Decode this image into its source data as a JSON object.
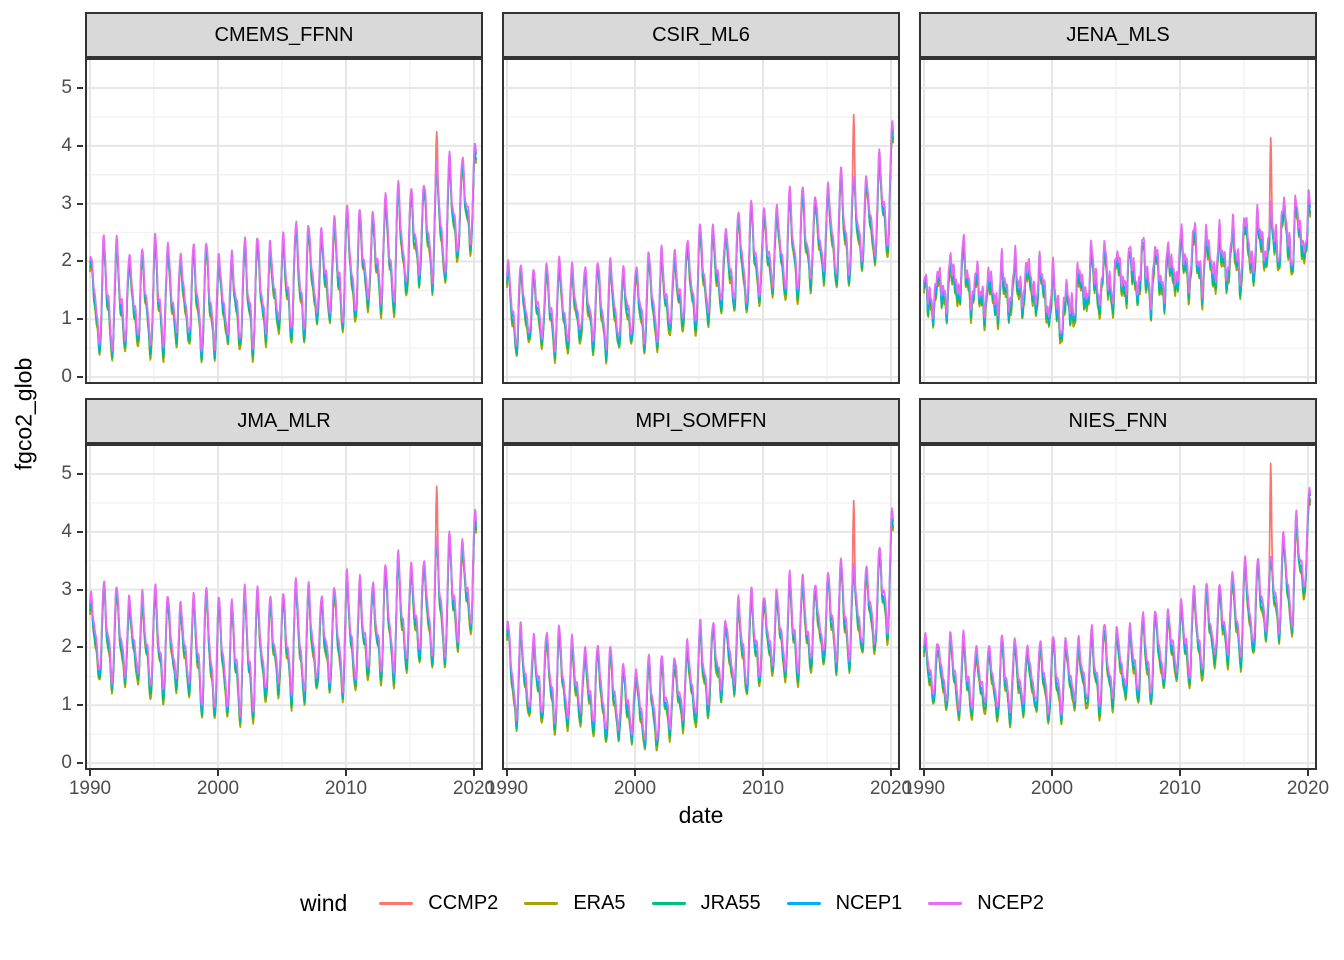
{
  "chart_data": {
    "type": "line",
    "xlabel": "date",
    "ylabel": "fgco2_glob",
    "legend_title": "wind",
    "x": {
      "min": 1990,
      "max": 2020.2,
      "ticks": [
        1990,
        2000,
        2010,
        2020
      ],
      "minor": [
        1995,
        2005,
        2015
      ]
    },
    "y": {
      "lim": [
        -0.12,
        5.52
      ],
      "ticks": [
        0,
        1,
        2,
        3,
        4,
        5
      ],
      "minor": [
        0.5,
        1.5,
        2.5,
        3.5,
        4.5,
        5.5
      ]
    },
    "grid": {
      "major_color": "#e6e6e6",
      "minor_color": "#f2f2f2",
      "panel_bg": "#ffffff",
      "border_color": "#333333",
      "strip_bg": "#d9d9d9"
    },
    "samples_per_year": 24,
    "spike_series": "CCMP2",
    "series": [
      {
        "name": "CCMP2",
        "color": "#F8766D",
        "offset": -0.06,
        "gain": 0.98
      },
      {
        "name": "ERA5",
        "color": "#A3A500",
        "offset": -0.1,
        "gain": 1.02
      },
      {
        "name": "JRA55",
        "color": "#00BF7D",
        "offset": -0.05,
        "gain": 1.0
      },
      {
        "name": "NCEP1",
        "color": "#00B0F6",
        "offset": 0.03,
        "gain": 1.0
      },
      {
        "name": "NCEP2",
        "color": "#E76BF3",
        "offset": 0.1,
        "gain": 1.0
      }
    ],
    "facets": [
      {
        "title": "CMEMS_FFNN",
        "noise": 0.1,
        "spike": {
          "t": 2017.09,
          "value": 4.25
        },
        "mean": [
          [
            1990,
            1.3
          ],
          [
            1992,
            1.32
          ],
          [
            1994,
            1.28
          ],
          [
            1996,
            1.35
          ],
          [
            1998,
            1.32
          ],
          [
            2000,
            1.25
          ],
          [
            2002,
            1.32
          ],
          [
            2004,
            1.45
          ],
          [
            2006,
            1.6
          ],
          [
            2008,
            1.7
          ],
          [
            2010,
            1.85
          ],
          [
            2012,
            1.95
          ],
          [
            2014,
            2.2
          ],
          [
            2016,
            2.45
          ],
          [
            2017,
            2.55
          ],
          [
            2018,
            2.7
          ],
          [
            2019,
            2.9
          ],
          [
            2020.2,
            3.1
          ]
        ],
        "amp": [
          [
            1990,
            0.95
          ],
          [
            2000,
            0.9
          ],
          [
            2010,
            0.95
          ],
          [
            2016,
            1.0
          ],
          [
            2020.2,
            1.0
          ]
        ]
      },
      {
        "title": "CSIR_ML6",
        "noise": 0.08,
        "spike": {
          "t": 2017.09,
          "value": 4.55
        },
        "mean": [
          [
            1990,
            1.15
          ],
          [
            1992,
            1.18
          ],
          [
            1994,
            1.15
          ],
          [
            1996,
            1.2
          ],
          [
            1998,
            1.15
          ],
          [
            2000,
            1.2
          ],
          [
            2002,
            1.3
          ],
          [
            2004,
            1.55
          ],
          [
            2006,
            1.75
          ],
          [
            2008,
            1.95
          ],
          [
            2010,
            2.1
          ],
          [
            2012,
            2.2
          ],
          [
            2014,
            2.35
          ],
          [
            2016,
            2.5
          ],
          [
            2018,
            2.65
          ],
          [
            2019,
            2.8
          ],
          [
            2020.2,
            3.3
          ]
        ],
        "amp": [
          [
            1990,
            0.72
          ],
          [
            2000,
            0.75
          ],
          [
            2010,
            0.85
          ],
          [
            2020.2,
            0.95
          ]
        ]
      },
      {
        "title": "JENA_MLS",
        "noise": 0.22,
        "spike": {
          "t": 2017.09,
          "value": 4.15
        },
        "mean": [
          [
            1990,
            1.25
          ],
          [
            1991,
            1.45
          ],
          [
            1992,
            1.55
          ],
          [
            1993,
            1.8
          ],
          [
            1994,
            1.45
          ],
          [
            1995,
            1.4
          ],
          [
            1996,
            1.45
          ],
          [
            1997,
            1.55
          ],
          [
            1998,
            1.6
          ],
          [
            1999,
            1.55
          ],
          [
            2000,
            1.3
          ],
          [
            2001,
            1.05
          ],
          [
            2002,
            1.45
          ],
          [
            2003,
            1.65
          ],
          [
            2004,
            1.65
          ],
          [
            2005,
            1.7
          ],
          [
            2006,
            1.75
          ],
          [
            2007,
            1.8
          ],
          [
            2008,
            1.7
          ],
          [
            2009,
            1.75
          ],
          [
            2010,
            1.95
          ],
          [
            2011,
            2.0
          ],
          [
            2012,
            1.95
          ],
          [
            2013,
            2.0
          ],
          [
            2014,
            2.05
          ],
          [
            2015,
            2.15
          ],
          [
            2016,
            2.25
          ],
          [
            2017,
            2.35
          ],
          [
            2018,
            2.45
          ],
          [
            2019,
            2.4
          ],
          [
            2020.2,
            2.55
          ]
        ],
        "amp": [
          [
            1990,
            0.4
          ],
          [
            2000,
            0.45
          ],
          [
            2010,
            0.5
          ],
          [
            2020.2,
            0.55
          ]
        ]
      },
      {
        "title": "JMA_MLR",
        "noise": 0.08,
        "spike": {
          "t": 2017.09,
          "value": 4.8
        },
        "mean": [
          [
            1990,
            2.2
          ],
          [
            1992,
            2.15
          ],
          [
            1994,
            2.05
          ],
          [
            1996,
            2.0
          ],
          [
            1998,
            1.95
          ],
          [
            2000,
            1.8
          ],
          [
            2001,
            1.7
          ],
          [
            2002,
            1.8
          ],
          [
            2004,
            1.95
          ],
          [
            2006,
            2.05
          ],
          [
            2008,
            2.05
          ],
          [
            2010,
            2.15
          ],
          [
            2012,
            2.25
          ],
          [
            2014,
            2.45
          ],
          [
            2016,
            2.6
          ],
          [
            2018,
            2.8
          ],
          [
            2019,
            2.9
          ],
          [
            2020.2,
            3.3
          ]
        ],
        "amp": [
          [
            1990,
            0.8
          ],
          [
            1998,
            0.9
          ],
          [
            2001,
            1.25
          ],
          [
            2003,
            1.0
          ],
          [
            2010,
            0.95
          ],
          [
            2015,
            1.0
          ],
          [
            2020.2,
            1.1
          ]
        ]
      },
      {
        "title": "MPI_SOMFFN",
        "noise": 0.09,
        "spike": {
          "t": 2017.09,
          "value": 4.55
        },
        "mean": [
          [
            1990,
            1.5
          ],
          [
            1992,
            1.45
          ],
          [
            1994,
            1.4
          ],
          [
            1996,
            1.3
          ],
          [
            1998,
            1.15
          ],
          [
            2000,
            0.95
          ],
          [
            2002,
            1.0
          ],
          [
            2004,
            1.3
          ],
          [
            2006,
            1.65
          ],
          [
            2008,
            1.95
          ],
          [
            2010,
            2.15
          ],
          [
            2012,
            2.25
          ],
          [
            2014,
            2.35
          ],
          [
            2016,
            2.5
          ],
          [
            2018,
            2.6
          ],
          [
            2019,
            2.7
          ],
          [
            2020.2,
            3.4
          ]
        ],
        "amp": [
          [
            1990,
            0.85
          ],
          [
            2000,
            0.7
          ],
          [
            2010,
            0.8
          ],
          [
            2020.2,
            0.9
          ]
        ]
      },
      {
        "title": "NIES_FNN",
        "noise": 0.08,
        "spike": {
          "t": 2017.09,
          "value": 5.2
        },
        "mean": [
          [
            1990,
            1.6
          ],
          [
            1992,
            1.5
          ],
          [
            1994,
            1.4
          ],
          [
            1996,
            1.4
          ],
          [
            1998,
            1.45
          ],
          [
            2000,
            1.4
          ],
          [
            2002,
            1.5
          ],
          [
            2004,
            1.6
          ],
          [
            2006,
            1.7
          ],
          [
            2008,
            1.85
          ],
          [
            2010,
            2.05
          ],
          [
            2012,
            2.25
          ],
          [
            2014,
            2.45
          ],
          [
            2016,
            2.7
          ],
          [
            2018,
            3.0
          ],
          [
            2019,
            3.2
          ],
          [
            2020.2,
            3.95
          ]
        ],
        "amp": [
          [
            1990,
            0.62
          ],
          [
            2000,
            0.65
          ],
          [
            2010,
            0.72
          ],
          [
            2020.2,
            0.9
          ]
        ]
      }
    ]
  }
}
